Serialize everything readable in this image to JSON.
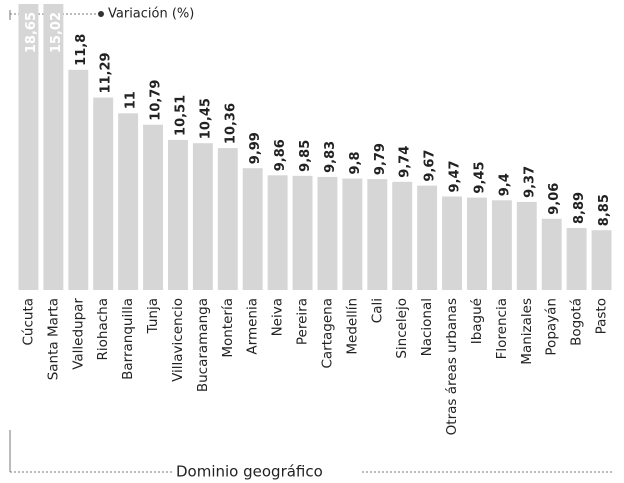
{
  "chart_data": {
    "type": "bar",
    "legend": "Variación (%)",
    "x_label": "Dominio geográfico",
    "categories": [
      "Cúcuta",
      "Santa Marta",
      "Valledupar",
      "Riohacha",
      "Barranquilla",
      "Tunja",
      "Villavicencio",
      "Bucaramanga",
      "Montería",
      "Armenia",
      "Neiva",
      "Pereira",
      "Cartagena",
      "Medellín",
      "Cali",
      "Sincelejo",
      "Nacional",
      "Otras áreas urbanas",
      "Ibagué",
      "Florencia",
      "Manizales",
      "Popayán",
      "Bogotá",
      "Pasto"
    ],
    "values": [
      18.65,
      15.02,
      11.8,
      11.29,
      11,
      10.79,
      10.51,
      10.45,
      10.36,
      9.99,
      9.86,
      9.85,
      9.83,
      9.8,
      9.79,
      9.74,
      9.67,
      9.47,
      9.45,
      9.4,
      9.37,
      9.06,
      8.89,
      8.85
    ],
    "value_labels": [
      "18,65",
      "15,02",
      "11,8",
      "11,29",
      "11",
      "10,79",
      "10,51",
      "10,45",
      "10,36",
      "9,99",
      "9,86",
      "9,85",
      "9,83",
      "9,8",
      "9,79",
      "9,74",
      "9,67",
      "9,47",
      "9,45",
      "9,4",
      "9,37",
      "9,06",
      "8,89",
      "8,85"
    ],
    "color": "#d6d6d6",
    "ylim": [
      7.75,
      12.9
    ]
  }
}
